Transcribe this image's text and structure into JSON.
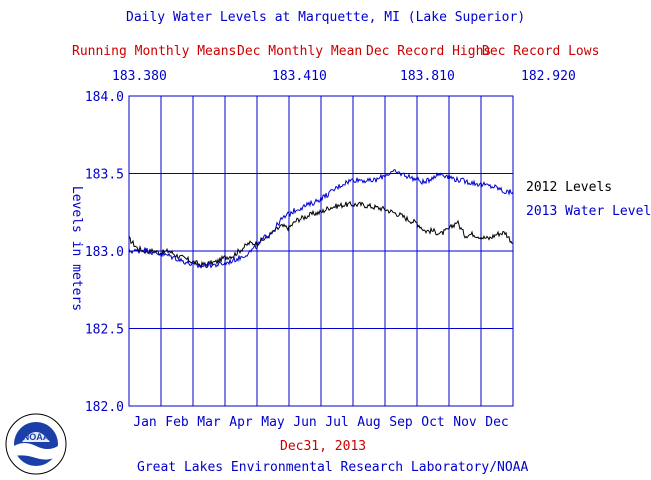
{
  "header": {
    "title": "Daily Water Levels at Marquette, MI (Lake Superior)",
    "stats": [
      {
        "label": "Running Monthly Means",
        "value": "183.380"
      },
      {
        "label": "Dec Monthly Mean",
        "value": "183.410"
      },
      {
        "label": "Dec Record Highs",
        "value": "183.810"
      },
      {
        "label": "Dec Record Lows",
        "value": "182.920"
      }
    ]
  },
  "footer": {
    "date": "Dec31, 2013",
    "credit": "Great Lakes Environmental Research Laboratory/NOAA",
    "logo_text": "NOAA"
  },
  "colors": {
    "series_2012": "#000000",
    "series_2013": "#0000cc",
    "grid": "#0000cc",
    "text_red": "#cc0000"
  },
  "chart_data": {
    "type": "line",
    "title": "Daily Water Levels at Marquette, MI (Lake Superior)",
    "ylabel": "Levels in meters",
    "xlabel": "",
    "ylim": [
      182.0,
      184.0
    ],
    "yticks": [
      "182.0",
      "182.5",
      "183.0",
      "183.5",
      "184.0"
    ],
    "categories": [
      "Jan",
      "Feb",
      "Mar",
      "Apr",
      "May",
      "Jun",
      "Jul",
      "Aug",
      "Sep",
      "Oct",
      "Nov",
      "Dec"
    ],
    "grid": true,
    "legend_placement": "right",
    "series": [
      {
        "name": "2012 Levels",
        "color": "#000000",
        "x": [
          0,
          0.25,
          0.5,
          0.75,
          1,
          1.25,
          1.5,
          1.75,
          2,
          2.25,
          2.5,
          2.75,
          3,
          3.25,
          3.5,
          3.75,
          4,
          4.25,
          4.5,
          4.75,
          5,
          5.25,
          5.5,
          5.75,
          6,
          6.25,
          6.5,
          6.75,
          7,
          7.25,
          7.5,
          7.75,
          8,
          8.25,
          8.5,
          8.75,
          9,
          9.25,
          9.5,
          9.75,
          10,
          10.25,
          10.5,
          10.75,
          11,
          11.25,
          11.5,
          11.75,
          12
        ],
        "values": [
          183.08,
          183.02,
          183.0,
          183.0,
          182.99,
          183.0,
          182.97,
          182.95,
          182.93,
          182.91,
          182.92,
          182.93,
          182.96,
          182.97,
          183.01,
          183.05,
          183.05,
          183.08,
          183.12,
          183.16,
          183.15,
          183.2,
          183.22,
          183.24,
          183.25,
          183.28,
          183.29,
          183.3,
          183.3,
          183.3,
          183.29,
          183.28,
          183.27,
          183.25,
          183.23,
          183.2,
          183.18,
          183.13,
          183.13,
          183.11,
          183.14,
          183.19,
          183.1,
          183.11,
          183.09,
          183.08,
          183.11,
          183.12,
          183.05
        ]
      },
      {
        "name": "2013 Water Level",
        "color": "#0000cc",
        "x": [
          0,
          0.25,
          0.5,
          0.75,
          1,
          1.25,
          1.5,
          1.75,
          2,
          2.25,
          2.5,
          2.75,
          3,
          3.25,
          3.5,
          3.75,
          4,
          4.25,
          4.5,
          4.75,
          5,
          5.25,
          5.5,
          5.75,
          6,
          6.25,
          6.5,
          6.75,
          7,
          7.25,
          7.5,
          7.75,
          8,
          8.25,
          8.5,
          8.75,
          9,
          9.25,
          9.5,
          9.75,
          10,
          10.25,
          10.5,
          10.75,
          11,
          11.25,
          11.5,
          11.75,
          12
        ],
        "values": [
          183.0,
          183.0,
          183.01,
          182.99,
          182.98,
          182.97,
          182.95,
          182.93,
          182.91,
          182.9,
          182.91,
          182.91,
          182.92,
          182.94,
          182.96,
          182.99,
          183.03,
          183.09,
          183.13,
          183.2,
          183.24,
          183.27,
          183.29,
          183.31,
          183.34,
          183.37,
          183.41,
          183.44,
          183.46,
          183.46,
          183.45,
          183.46,
          183.49,
          183.51,
          183.5,
          183.48,
          183.46,
          183.44,
          183.48,
          183.5,
          183.48,
          183.46,
          183.45,
          183.44,
          183.43,
          183.42,
          183.41,
          183.38,
          183.38
        ]
      }
    ]
  }
}
